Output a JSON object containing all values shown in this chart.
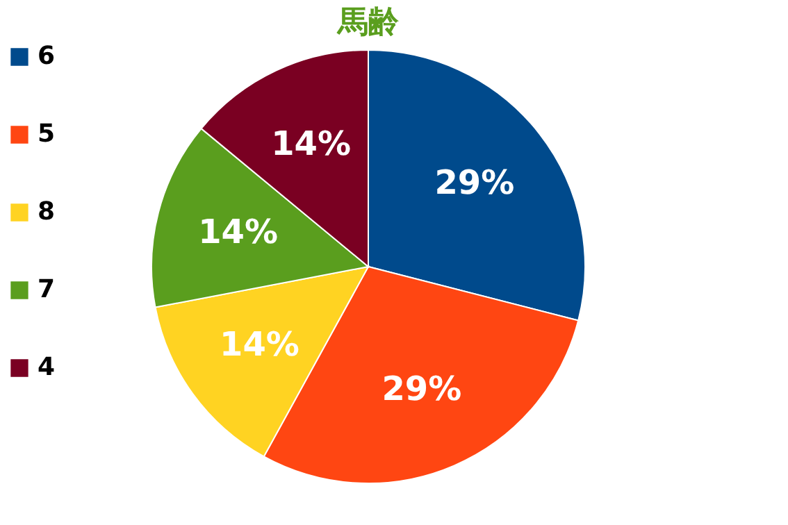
{
  "chart_data": {
    "type": "pie",
    "title": "馬齢",
    "categories": [
      "6",
      "5",
      "8",
      "7",
      "4"
    ],
    "values": [
      29,
      29,
      14,
      14,
      14
    ],
    "value_labels": [
      "29%",
      "29%",
      "14%",
      "14%",
      "14%"
    ],
    "colors": [
      "#004a8c",
      "#ff4612",
      "#ffd322",
      "#5a9e1e",
      "#7a0022"
    ],
    "legend": "left"
  }
}
